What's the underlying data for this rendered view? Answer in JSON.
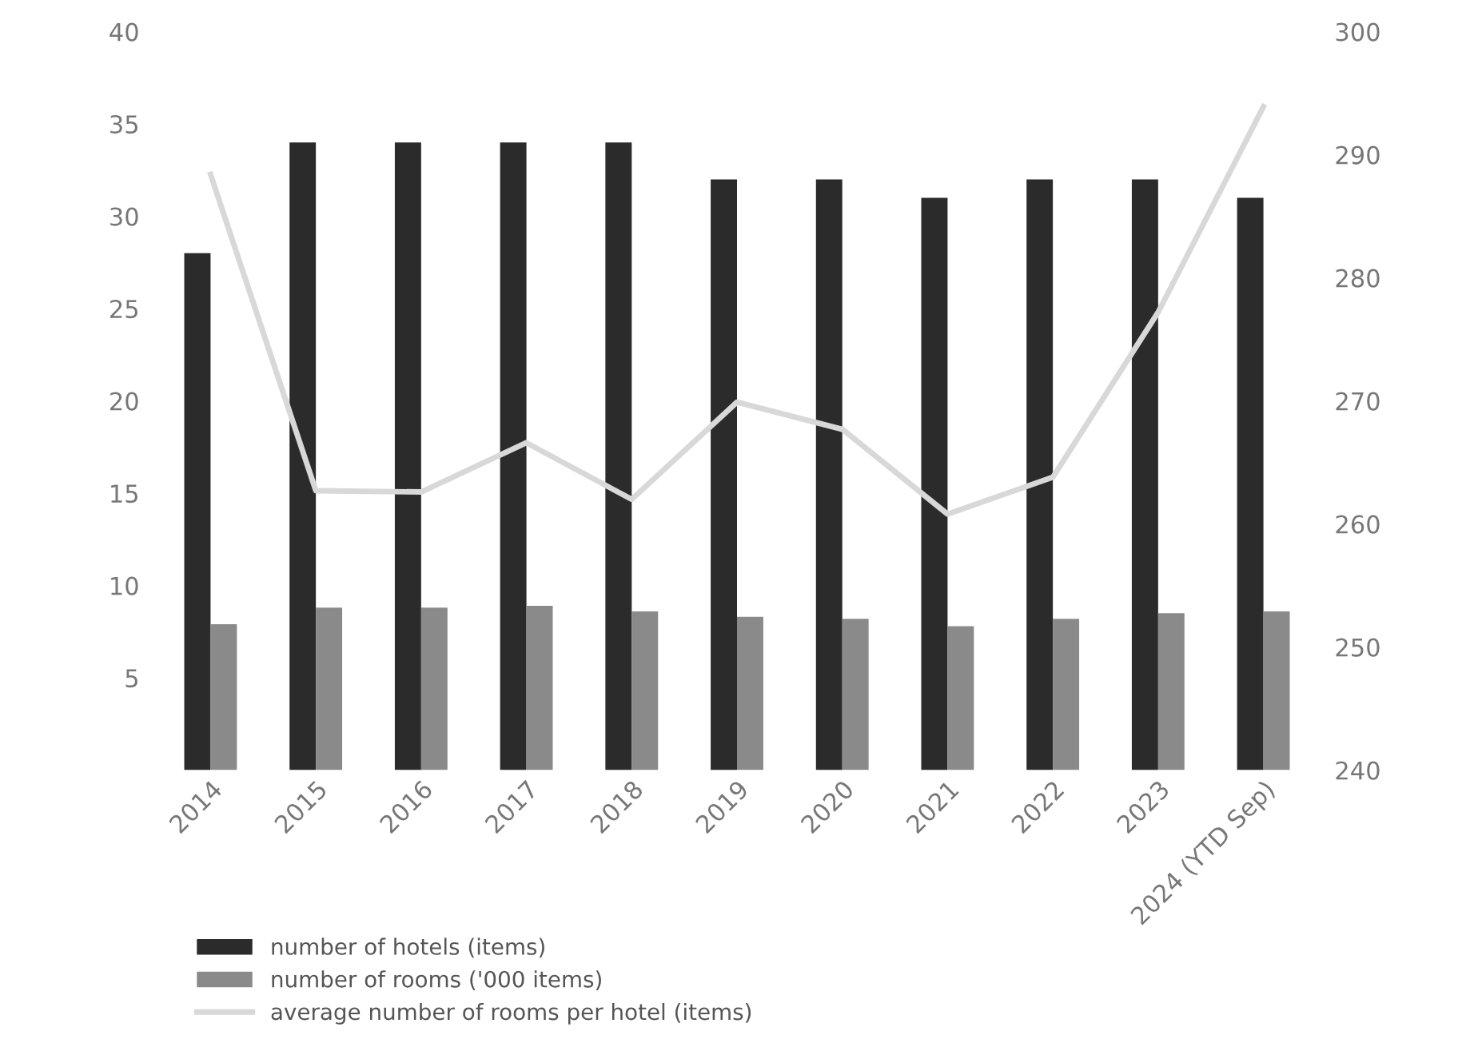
{
  "chart_data": {
    "type": "bar",
    "categories": [
      "2014",
      "2015",
      "2016",
      "2017",
      "2018",
      "2019",
      "2020",
      "2021",
      "2022",
      "2023",
      "2024 (YTD Sep)"
    ],
    "series": [
      {
        "name": "number of hotels (items)",
        "color": "#2b2b2b",
        "values": [
          28,
          34,
          34,
          34,
          34,
          32,
          32,
          31,
          32,
          32,
          31
        ]
      },
      {
        "name": "number of rooms ('000 items)",
        "color": "#8a8a8a",
        "values": [
          7.9,
          8.8,
          8.8,
          8.9,
          8.6,
          8.3,
          8.2,
          7.8,
          8.2,
          8.5,
          8.6
        ]
      },
      {
        "name": "average number of rooms per hotel (items)",
        "color": "#d8d8d8",
        "type": "line",
        "axis": "y2",
        "values": [
          288.4,
          262.7,
          262.6,
          266.6,
          262.0,
          269.9,
          267.7,
          260.8,
          263.8,
          277.2,
          293.9
        ]
      }
    ],
    "ylim": [
      0,
      40
    ],
    "yticks": [
      5,
      10,
      15,
      20,
      25,
      30,
      35,
      40
    ],
    "y2lim": [
      240,
      300
    ],
    "y2ticks": [
      240,
      250,
      260,
      270,
      280,
      290,
      300
    ],
    "grid": false,
    "legend": "bottom left",
    "marker": "none",
    "line_style": "solid"
  }
}
